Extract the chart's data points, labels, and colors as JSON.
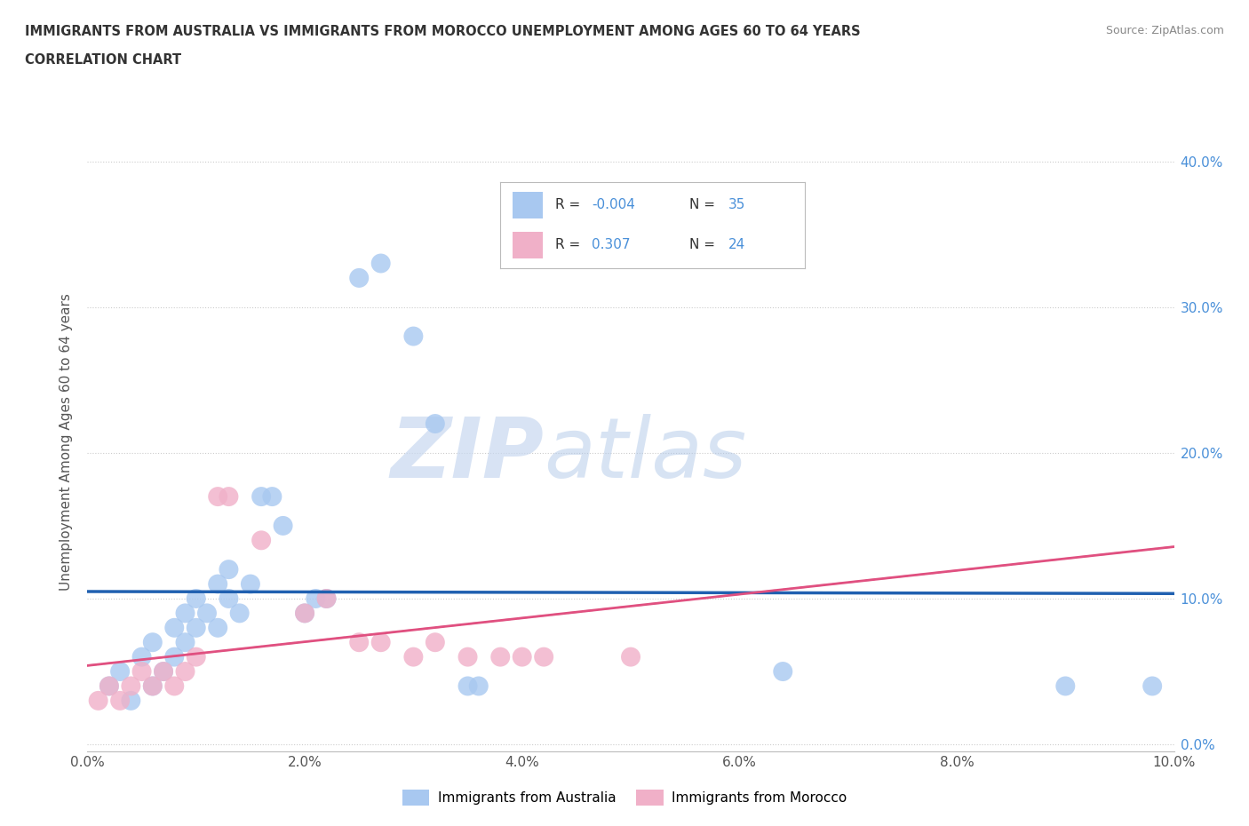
{
  "title_line1": "IMMIGRANTS FROM AUSTRALIA VS IMMIGRANTS FROM MOROCCO UNEMPLOYMENT AMONG AGES 60 TO 64 YEARS",
  "title_line2": "CORRELATION CHART",
  "source": "Source: ZipAtlas.com",
  "ylabel": "Unemployment Among Ages 60 to 64 years",
  "xlim": [
    0.0,
    0.1
  ],
  "ylim": [
    -0.005,
    0.42
  ],
  "xticks": [
    0.0,
    0.02,
    0.04,
    0.06,
    0.08,
    0.1
  ],
  "yticks": [
    0.0,
    0.1,
    0.2,
    0.3,
    0.4
  ],
  "xtick_labels": [
    "0.0%",
    "2.0%",
    "4.0%",
    "6.0%",
    "8.0%",
    "10.0%"
  ],
  "ytick_labels": [
    "0.0%",
    "10.0%",
    "20.0%",
    "30.0%",
    "40.0%"
  ],
  "watermark_zip": "ZIP",
  "watermark_atlas": "atlas",
  "legend_R_australia": "-0.004",
  "legend_N_australia": "35",
  "legend_R_morocco": "0.307",
  "legend_N_morocco": "24",
  "australia_color": "#a8c8f0",
  "morocco_color": "#f0b0c8",
  "trend_australia_color": "#2060b0",
  "trend_morocco_color": "#e05080",
  "australia_scatter": [
    [
      0.002,
      0.04
    ],
    [
      0.003,
      0.05
    ],
    [
      0.004,
      0.03
    ],
    [
      0.005,
      0.06
    ],
    [
      0.006,
      0.04
    ],
    [
      0.006,
      0.07
    ],
    [
      0.007,
      0.05
    ],
    [
      0.008,
      0.06
    ],
    [
      0.008,
      0.08
    ],
    [
      0.009,
      0.07
    ],
    [
      0.009,
      0.09
    ],
    [
      0.01,
      0.08
    ],
    [
      0.01,
      0.1
    ],
    [
      0.011,
      0.09
    ],
    [
      0.012,
      0.08
    ],
    [
      0.012,
      0.11
    ],
    [
      0.013,
      0.1
    ],
    [
      0.013,
      0.12
    ],
    [
      0.014,
      0.09
    ],
    [
      0.015,
      0.11
    ],
    [
      0.016,
      0.17
    ],
    [
      0.017,
      0.17
    ],
    [
      0.018,
      0.15
    ],
    [
      0.02,
      0.09
    ],
    [
      0.021,
      0.1
    ],
    [
      0.022,
      0.1
    ],
    [
      0.025,
      0.32
    ],
    [
      0.027,
      0.33
    ],
    [
      0.03,
      0.28
    ],
    [
      0.032,
      0.22
    ],
    [
      0.035,
      0.04
    ],
    [
      0.036,
      0.04
    ],
    [
      0.064,
      0.05
    ],
    [
      0.09,
      0.04
    ],
    [
      0.098,
      0.04
    ]
  ],
  "morocco_scatter": [
    [
      0.001,
      0.03
    ],
    [
      0.002,
      0.04
    ],
    [
      0.003,
      0.03
    ],
    [
      0.004,
      0.04
    ],
    [
      0.005,
      0.05
    ],
    [
      0.006,
      0.04
    ],
    [
      0.007,
      0.05
    ],
    [
      0.008,
      0.04
    ],
    [
      0.009,
      0.05
    ],
    [
      0.01,
      0.06
    ],
    [
      0.012,
      0.17
    ],
    [
      0.013,
      0.17
    ],
    [
      0.016,
      0.14
    ],
    [
      0.02,
      0.09
    ],
    [
      0.022,
      0.1
    ],
    [
      0.025,
      0.07
    ],
    [
      0.027,
      0.07
    ],
    [
      0.03,
      0.06
    ],
    [
      0.032,
      0.07
    ],
    [
      0.035,
      0.06
    ],
    [
      0.038,
      0.06
    ],
    [
      0.04,
      0.06
    ],
    [
      0.042,
      0.06
    ],
    [
      0.05,
      0.06
    ]
  ]
}
